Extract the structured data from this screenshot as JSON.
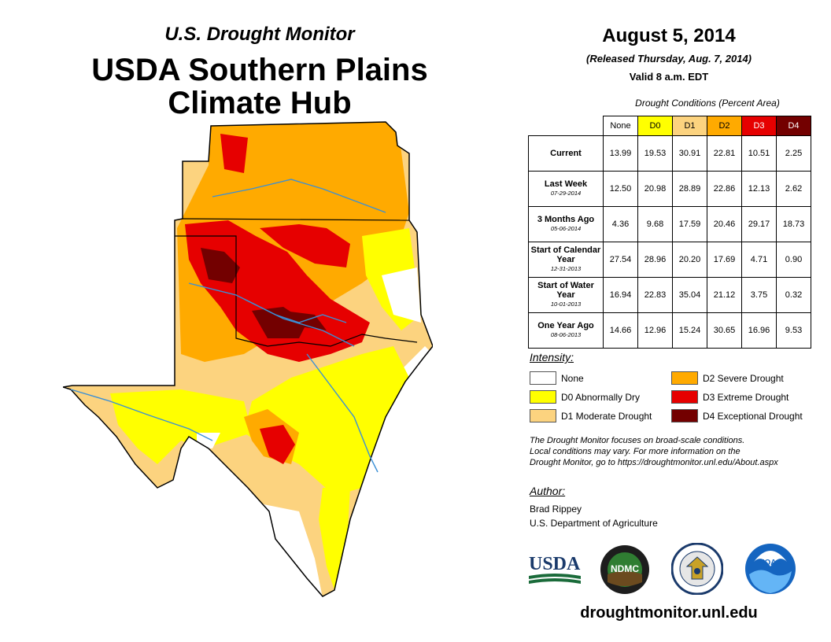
{
  "header": {
    "subtitle": "U.S. Drought Monitor",
    "title_line1": "USDA Southern Plains",
    "title_line2": "Climate Hub"
  },
  "release": {
    "date": "August 5, 2014",
    "released": "(Released Thursday, Aug. 7, 2014)",
    "valid": "Valid 8 a.m. EDT"
  },
  "conditions_table": {
    "caption": "Drought Conditions (Percent Area)",
    "columns": [
      "None",
      "D0",
      "D1",
      "D2",
      "D3",
      "D4"
    ],
    "column_colors": [
      "#ffffff",
      "#ffff00",
      "#fcd37f",
      "#ffaa00",
      "#e60000",
      "#730000"
    ],
    "rows": [
      {
        "label": "Current",
        "date": "",
        "values": [
          "13.99",
          "19.53",
          "30.91",
          "22.81",
          "10.51",
          "2.25"
        ]
      },
      {
        "label": "Last Week",
        "date": "07-29-2014",
        "values": [
          "12.50",
          "20.98",
          "28.89",
          "22.86",
          "12.13",
          "2.62"
        ]
      },
      {
        "label": "3 Months Ago",
        "date": "05-06-2014",
        "values": [
          "4.36",
          "9.68",
          "17.59",
          "20.46",
          "29.17",
          "18.73"
        ]
      },
      {
        "label": "Start of Calendar Year",
        "date": "12-31-2013",
        "values": [
          "27.54",
          "28.96",
          "20.20",
          "17.69",
          "4.71",
          "0.90"
        ]
      },
      {
        "label": "Start of Water Year",
        "date": "10-01-2013",
        "values": [
          "16.94",
          "22.83",
          "35.04",
          "21.12",
          "3.75",
          "0.32"
        ]
      },
      {
        "label": "One Year Ago",
        "date": "08-06-2013",
        "values": [
          "14.66",
          "12.96",
          "15.24",
          "30.65",
          "16.96",
          "9.53"
        ]
      }
    ]
  },
  "legend": {
    "title": "Intensity:",
    "items": [
      {
        "label": "None",
        "color": "#ffffff"
      },
      {
        "label": "D0 Abnormally Dry",
        "color": "#ffff00"
      },
      {
        "label": "D1 Moderate Drought",
        "color": "#fcd37f"
      },
      {
        "label": "D2 Severe Drought",
        "color": "#ffaa00"
      },
      {
        "label": "D3 Extreme Drought",
        "color": "#e60000"
      },
      {
        "label": "D4 Exceptional Drought",
        "color": "#730000"
      }
    ]
  },
  "note": {
    "line1": "The Drought Monitor focuses on broad-scale conditions.",
    "line2": "Local conditions may vary. For more information on the",
    "line3": "Drought Monitor, go to https://droughtmonitor.unl.edu/About.aspx"
  },
  "author": {
    "title": "Author:",
    "name": "Brad Rippey",
    "org": "U.S. Department of Agriculture"
  },
  "logos": {
    "usda": "USDA",
    "ndmc": "NDMC",
    "noaa": "NOAA"
  },
  "site": "droughtmonitor.unl.edu"
}
